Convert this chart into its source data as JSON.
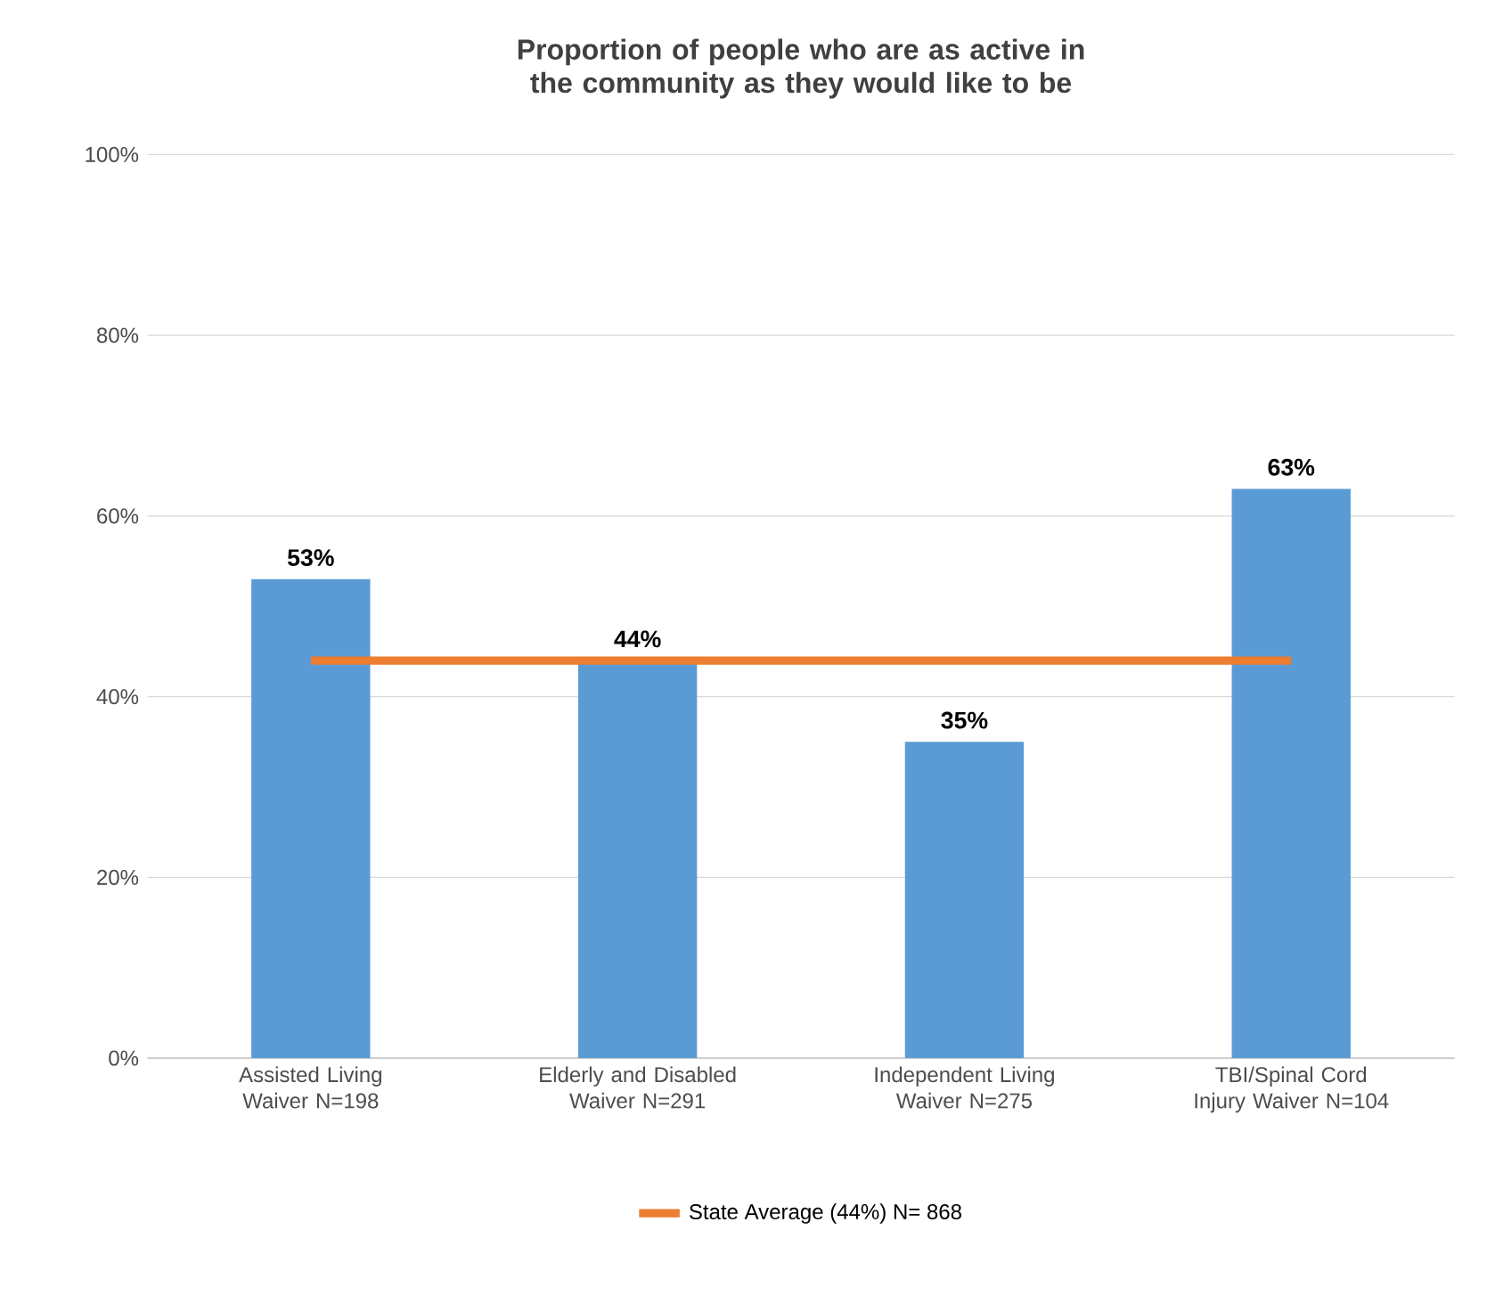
{
  "chart_data": {
    "type": "bar",
    "title": "Proportion of people who are as active in the community as they would like to be",
    "categories": [
      "Assisted Living Waiver N=198",
      "Elderly and Disabled Waiver N=291",
      "Independent Living Waiver N=275",
      "TBI/Spinal Cord Injury Waiver N=104"
    ],
    "series": [
      {
        "color": "#5b9bd5",
        "values": [
          53,
          44,
          35,
          63
        ],
        "value_labels": [
          "53%",
          "44%",
          "35%",
          "63%"
        ]
      },
      {
        "type": "line",
        "name": "State Average (44%) N= 868",
        "color": "#ed7d31",
        "values": [
          44,
          44,
          44,
          44
        ]
      }
    ],
    "ylim": [
      0,
      100
    ],
    "yticks": [
      {
        "value": 0,
        "label": "0%"
      },
      {
        "value": 20,
        "label": "20%"
      },
      {
        "value": 40,
        "label": "40%"
      },
      {
        "value": 60,
        "label": "60%"
      },
      {
        "value": 80,
        "label": "80%"
      },
      {
        "value": 100,
        "label": "100%"
      }
    ],
    "grid": "y",
    "legend": "bottom"
  }
}
